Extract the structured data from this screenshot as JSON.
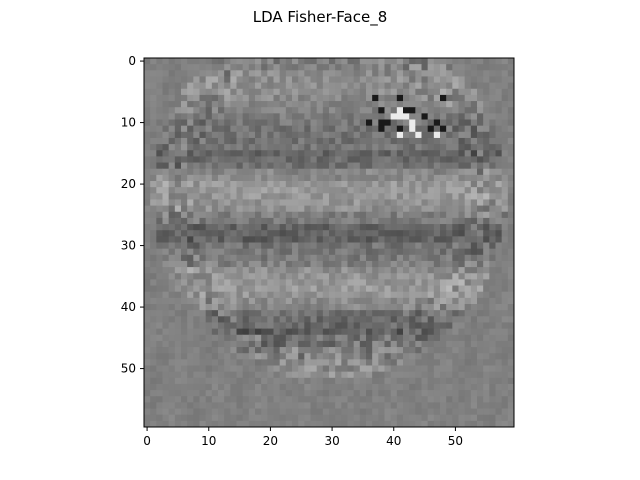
{
  "chart_data": {
    "type": "heatmap",
    "title": "LDA Fisher-Face_8",
    "xlabel": "",
    "ylabel": "",
    "grid_shape": [
      60,
      60
    ],
    "xlim": [
      -0.5,
      59.5
    ],
    "ylim": [
      59.5,
      -0.5
    ],
    "xticks": [
      0,
      10,
      20,
      30,
      40,
      50
    ],
    "yticks": [
      0,
      10,
      20,
      30,
      40,
      50
    ],
    "colormap": "gray",
    "background_gray": "#828282",
    "grid": false
  }
}
